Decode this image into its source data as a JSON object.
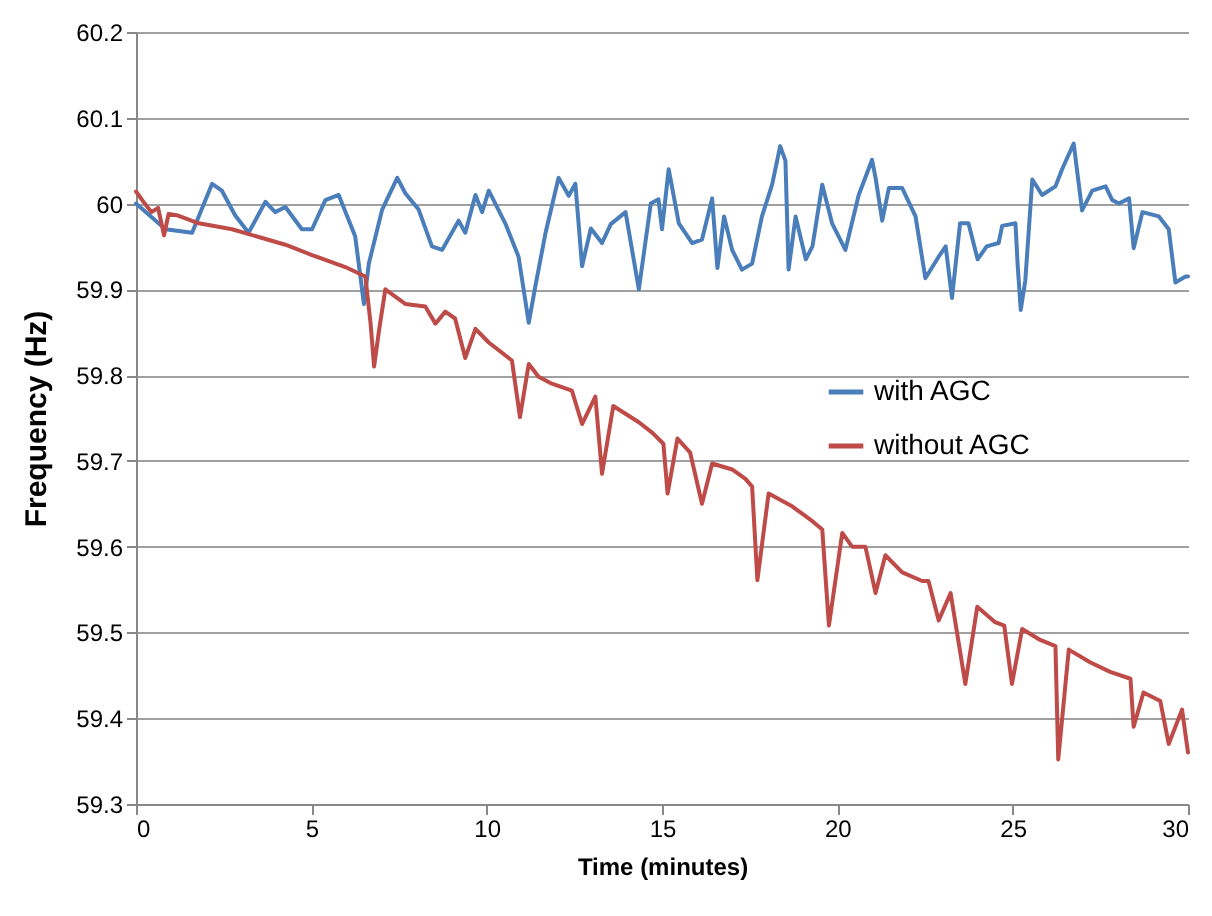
{
  "chart_data": {
    "type": "line",
    "xlabel": "Time (minutes)",
    "ylabel": "Frequency (Hz)",
    "xlim": [
      0,
      30
    ],
    "xticks": [
      0,
      5,
      10,
      15,
      20,
      25,
      30
    ],
    "ylim": [
      59.3,
      60.2
    ],
    "yticks": [
      59.3,
      59.4,
      59.5,
      59.6,
      59.7,
      59.8,
      59.9,
      60,
      60.1,
      60.2
    ],
    "grid": "y",
    "legend": "right",
    "marker": "none",
    "line_style": "solid",
    "series": [
      {
        "name": "with AGC",
        "color": "#4a7ebb",
        "x": [
          0,
          0.84,
          1.6,
          2.17,
          2.45,
          2.83,
          3.21,
          3.69,
          3.97,
          4.26,
          4.73,
          5.02,
          5.4,
          5.78,
          6.25,
          6.5,
          6.64,
          7.02,
          7.45,
          7.68,
          8.06,
          8.44,
          8.73,
          9.2,
          9.39,
          9.68,
          9.87,
          10.06,
          10.53,
          10.91,
          11.2,
          11.39,
          11.68,
          12.05,
          12.34,
          12.53,
          12.72,
          12.97,
          13.29,
          13.54,
          13.96,
          14.34,
          14.68,
          14.9,
          15.0,
          15.19,
          15.48,
          15.86,
          16.14,
          16.43,
          16.58,
          16.77,
          17.0,
          17.28,
          17.57,
          17.85,
          18.14,
          18.37,
          18.52,
          18.61,
          18.81,
          19.1,
          19.29,
          19.57,
          19.85,
          20.23,
          20.61,
          20.99,
          21.09,
          21.28,
          21.47,
          21.85,
          22.23,
          22.51,
          22.89,
          23.09,
          23.27,
          23.5,
          23.74,
          24.0,
          24.26,
          24.6,
          24.7,
          25.08,
          25.14,
          25.23,
          25.36,
          25.56,
          25.84,
          26.22,
          26.41,
          26.74,
          26.98,
          27.27,
          27.65,
          27.84,
          28.03,
          28.32,
          28.45,
          28.7,
          29.17,
          29.45,
          29.64,
          29.93,
          30
        ],
        "values": [
          60.0,
          59.97,
          59.966,
          60.023,
          60.015,
          59.986,
          59.966,
          60.002,
          59.99,
          59.996,
          59.97,
          59.97,
          60.004,
          60.01,
          59.962,
          59.883,
          59.93,
          59.993,
          60.03,
          60.012,
          59.993,
          59.95,
          59.946,
          59.98,
          59.966,
          60.01,
          59.99,
          60.015,
          59.977,
          59.938,
          59.861,
          59.904,
          59.966,
          60.03,
          60.009,
          60.023,
          59.927,
          59.971,
          59.954,
          59.976,
          59.99,
          59.9,
          60.0,
          60.005,
          59.97,
          60.04,
          59.977,
          59.954,
          59.958,
          60.006,
          59.925,
          59.985,
          59.946,
          59.923,
          59.93,
          59.985,
          60.022,
          60.067,
          60.05,
          59.923,
          59.985,
          59.935,
          59.95,
          60.022,
          59.977,
          59.946,
          60.01,
          60.051,
          60.03,
          59.98,
          60.018,
          60.018,
          59.985,
          59.913,
          59.938,
          59.95,
          59.89,
          59.977,
          59.977,
          59.935,
          59.95,
          59.954,
          59.974,
          59.977,
          59.93,
          59.876,
          59.91,
          60.028,
          60.01,
          60.02,
          60.04,
          60.07,
          59.992,
          60.015,
          60.02,
          60.004,
          60.0,
          60.006,
          59.948,
          59.99,
          59.985,
          59.97,
          59.908,
          59.915,
          59.915
        ]
      },
      {
        "name": "without AGC",
        "color": "#be4b48",
        "x": [
          0,
          0.25,
          0.44,
          0.63,
          0.8,
          0.93,
          1.2,
          1.79,
          2.74,
          3.5,
          4.26,
          5.02,
          5.97,
          6.54,
          6.69,
          6.79,
          6.93,
          7.11,
          7.68,
          8.25,
          8.54,
          8.82,
          9.1,
          9.39,
          9.68,
          10.06,
          10.72,
          10.95,
          11.2,
          11.48,
          11.86,
          12.43,
          12.72,
          13.1,
          13.29,
          13.61,
          14.34,
          14.72,
          15.04,
          15.16,
          15.44,
          15.8,
          16.14,
          16.43,
          17.0,
          17.38,
          17.57,
          17.72,
          18.04,
          18.71,
          19.28,
          19.57,
          19.76,
          20.14,
          20.42,
          20.8,
          21.09,
          21.37,
          21.85,
          22.42,
          22.6,
          22.89,
          23.23,
          23.65,
          23.99,
          24.5,
          24.76,
          24.98,
          25.27,
          25.75,
          26.22,
          26.3,
          26.6,
          27.22,
          27.78,
          28.36,
          28.45,
          28.73,
          29.21,
          29.45,
          29.83,
          30
        ],
        "values": [
          60.014,
          60.0,
          59.99,
          59.995,
          59.963,
          59.988,
          59.986,
          59.977,
          59.97,
          59.961,
          59.952,
          59.94,
          59.926,
          59.915,
          59.86,
          59.81,
          59.852,
          59.9,
          59.883,
          59.88,
          59.86,
          59.874,
          59.866,
          59.82,
          59.854,
          59.838,
          59.817,
          59.751,
          59.813,
          59.798,
          59.79,
          59.782,
          59.743,
          59.775,
          59.685,
          59.764,
          59.745,
          59.733,
          59.72,
          59.662,
          59.726,
          59.71,
          59.65,
          59.697,
          59.69,
          59.679,
          59.67,
          59.561,
          59.662,
          59.647,
          59.63,
          59.62,
          59.508,
          59.616,
          59.6,
          59.6,
          59.546,
          59.59,
          59.57,
          59.56,
          59.56,
          59.514,
          59.546,
          59.44,
          59.53,
          59.512,
          59.508,
          59.44,
          59.504,
          59.492,
          59.484,
          59.352,
          59.48,
          59.465,
          59.454,
          59.446,
          59.39,
          59.43,
          59.42,
          59.37,
          59.41,
          59.36
        ]
      }
    ]
  }
}
